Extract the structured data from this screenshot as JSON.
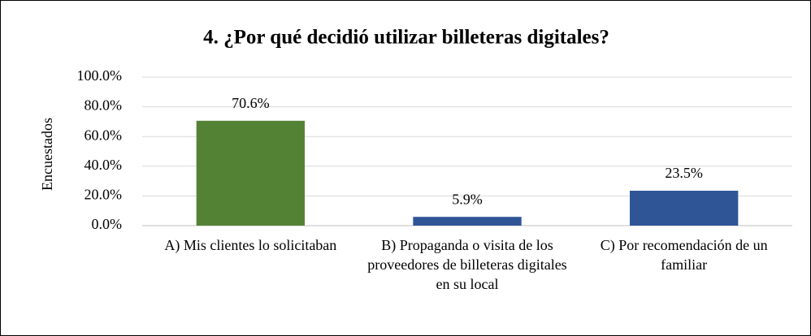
{
  "chart_data": {
    "type": "bar",
    "title": "4. ¿Por qué decidió utilizar billeteras digitales?",
    "y_label": "Encuestados",
    "categories": [
      "A) Mis clientes lo solicitaban",
      "B) Propaganda o visita de los proveedores de billeteras digitales en su local",
      "C) Por recomendación de un familiar"
    ],
    "values": [
      70.6,
      5.9,
      23.5
    ],
    "value_labels": [
      "70.6%",
      "5.9%",
      "23.5%"
    ],
    "colors": [
      "#548235",
      "#2f5597",
      "#2f5597"
    ],
    "ylim": [
      0,
      100
    ],
    "yticks": [
      {
        "value": 0,
        "label": "0.0%"
      },
      {
        "value": 20,
        "label": "20.0%"
      },
      {
        "value": 40,
        "label": "40.0%"
      },
      {
        "value": 60,
        "label": "60.0%"
      },
      {
        "value": 80,
        "label": "80.0%"
      },
      {
        "value": 100,
        "label": "100.0%"
      }
    ],
    "grid": true
  }
}
